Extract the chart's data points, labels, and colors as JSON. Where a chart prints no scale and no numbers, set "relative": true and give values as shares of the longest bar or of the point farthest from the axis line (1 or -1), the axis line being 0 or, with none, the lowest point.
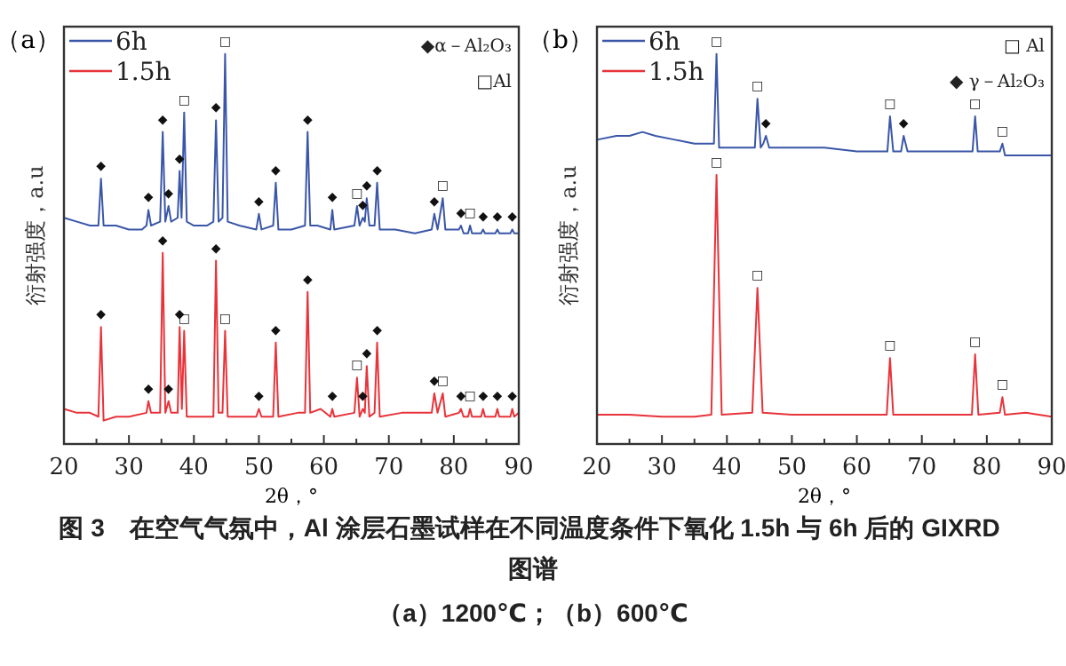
{
  "chart_data": [
    {
      "type": "line",
      "title": "（a）",
      "xlabel": "2θ，°",
      "ylabel": "衍射强度，a.u",
      "relative": true,
      "legend": "top left",
      "xlim": [
        20,
        90
      ],
      "xticks": [
        20,
        {
          "value": 25,
          "label": null
        },
        30,
        {
          "value": 35,
          "label": null
        },
        40,
        {
          "value": 45,
          "label": null
        },
        50,
        {
          "value": 55,
          "label": null
        },
        60,
        {
          "value": 65,
          "label": null
        },
        70,
        {
          "value": 75,
          "label": null
        },
        80,
        {
          "value": 85,
          "label": null
        },
        90
      ],
      "series": [
        {
          "name": "6h",
          "color": "#3a56a8",
          "x": [
            20,
            22,
            24,
            25.3,
            25.7,
            26.1,
            28,
            30,
            32,
            32.7,
            33,
            33.4,
            34.8,
            35.2,
            35.6,
            36.1,
            36.5,
            37.5,
            37.8,
            38.1,
            38.5,
            38.9,
            40,
            42,
            43,
            43.4,
            43.8,
            44.4,
            44.8,
            45.2,
            47,
            49.6,
            50,
            50.4,
            52.2,
            52.6,
            53,
            55,
            57.1,
            57.5,
            57.9,
            59,
            61,
            61.3,
            61.6,
            64.7,
            65.1,
            65.5,
            66,
            66.3,
            66.6,
            67,
            67.8,
            68.2,
            68.6,
            71,
            74,
            76.6,
            77,
            77.5,
            78.3,
            78.7,
            80.8,
            81.1,
            81.5,
            82.2,
            82.5,
            82.8,
            84.2,
            84.5,
            84.8,
            86.4,
            86.7,
            87,
            88.7,
            89,
            89.3,
            90
          ],
          "values": [
            0.58,
            0.57,
            0.56,
            0.56,
            0.68,
            0.56,
            0.56,
            0.55,
            0.55,
            0.56,
            0.6,
            0.56,
            0.57,
            0.8,
            0.57,
            0.61,
            0.57,
            0.58,
            0.7,
            0.58,
            0.85,
            0.57,
            0.56,
            0.56,
            0.57,
            0.83,
            0.57,
            0.58,
            1.0,
            0.57,
            0.56,
            0.55,
            0.59,
            0.55,
            0.56,
            0.67,
            0.55,
            0.55,
            0.56,
            0.8,
            0.56,
            0.56,
            0.55,
            0.6,
            0.55,
            0.56,
            0.61,
            0.56,
            0.58,
            0.57,
            0.63,
            0.56,
            0.56,
            0.67,
            0.55,
            0.55,
            0.54,
            0.55,
            0.59,
            0.55,
            0.63,
            0.55,
            0.55,
            0.56,
            0.54,
            0.54,
            0.56,
            0.54,
            0.54,
            0.55,
            0.54,
            0.54,
            0.55,
            0.54,
            0.54,
            0.55,
            0.54,
            0.54
          ]
        },
        {
          "name": "1.5h",
          "color": "#e8333a",
          "x": [
            20,
            22,
            24,
            25.3,
            25.7,
            26.1,
            28,
            30,
            32.7,
            33,
            33.4,
            34.8,
            35.2,
            35.6,
            36.1,
            36.5,
            37.5,
            37.8,
            38.15,
            38.5,
            38.9,
            40,
            43,
            43.4,
            43.8,
            44.4,
            44.8,
            45.2,
            47,
            49.6,
            50,
            50.4,
            52.2,
            52.6,
            53,
            56,
            57.1,
            57.5,
            57.9,
            59.5,
            61,
            61.3,
            61.6,
            64.7,
            65.1,
            65.5,
            66,
            66.3,
            66.6,
            67,
            67.8,
            68.2,
            68.6,
            72,
            76.6,
            77,
            77.5,
            78.3,
            78.7,
            80.8,
            81.1,
            81.5,
            82.2,
            82.5,
            82.8,
            84.2,
            84.5,
            84.8,
            86.4,
            86.7,
            87,
            88.7,
            89,
            89.3,
            90
          ],
          "values": [
            0.09,
            0.08,
            0.08,
            0.07,
            0.3,
            0.06,
            0.07,
            0.07,
            0.08,
            0.11,
            0.08,
            0.08,
            0.49,
            0.08,
            0.11,
            0.08,
            0.08,
            0.3,
            0.09,
            0.29,
            0.07,
            0.07,
            0.07,
            0.47,
            0.08,
            0.08,
            0.29,
            0.07,
            0.07,
            0.07,
            0.09,
            0.07,
            0.07,
            0.26,
            0.07,
            0.08,
            0.08,
            0.39,
            0.08,
            0.09,
            0.07,
            0.09,
            0.07,
            0.08,
            0.17,
            0.07,
            0.09,
            0.08,
            0.2,
            0.07,
            0.08,
            0.26,
            0.07,
            0.08,
            0.08,
            0.13,
            0.08,
            0.13,
            0.07,
            0.08,
            0.09,
            0.07,
            0.07,
            0.09,
            0.07,
            0.07,
            0.09,
            0.07,
            0.07,
            0.09,
            0.07,
            0.07,
            0.09,
            0.07,
            0.08
          ]
        }
      ],
      "annotations": [
        "◆α－Al₂O₃",
        "□Al",
        {
          "text": "◆",
          "x": 25.7,
          "y": 0.68
        },
        {
          "text": "◆",
          "x": 33,
          "y": 0.6
        },
        {
          "text": "◆",
          "x": 35.2,
          "y": 0.8
        },
        {
          "text": "◆",
          "x": 36.1,
          "y": 0.61
        },
        {
          "text": "◆",
          "x": 37.8,
          "y": 0.7
        },
        {
          "text": "□",
          "x": 38.5,
          "y": 0.85
        },
        {
          "text": "◆",
          "x": 43.4,
          "y": 0.83
        },
        {
          "text": "□",
          "x": 44.8,
          "y": 1.0
        },
        {
          "text": "◆",
          "x": 50,
          "y": 0.59
        },
        {
          "text": "◆",
          "x": 52.6,
          "y": 0.67
        },
        {
          "text": "◆",
          "x": 57.5,
          "y": 0.8
        },
        {
          "text": "◆",
          "x": 61.3,
          "y": 0.6
        },
        {
          "text": "□",
          "x": 65.1,
          "y": 0.61
        },
        {
          "text": "◆",
          "x": 66,
          "y": 0.58
        },
        {
          "text": "◆",
          "x": 66.6,
          "y": 0.63
        },
        {
          "text": "◆",
          "x": 68.2,
          "y": 0.67
        },
        {
          "text": "◆",
          "x": 77,
          "y": 0.59
        },
        {
          "text": "□",
          "x": 78.3,
          "y": 0.63
        },
        {
          "text": "◆",
          "x": 81.1,
          "y": 0.56
        },
        {
          "text": "□",
          "x": 82.5,
          "y": 0.56
        },
        {
          "text": "◆",
          "x": 84.5,
          "y": 0.55
        },
        {
          "text": "◆",
          "x": 86.7,
          "y": 0.55
        },
        {
          "text": "◆",
          "x": 89,
          "y": 0.55
        },
        {
          "text": "◆",
          "x": 25.7,
          "y": 0.3
        },
        {
          "text": "◆",
          "x": 33,
          "y": 0.11
        },
        {
          "text": "◆",
          "x": 35.2,
          "y": 0.49
        },
        {
          "text": "◆",
          "x": 36.1,
          "y": 0.11
        },
        {
          "text": "◆",
          "x": 37.8,
          "y": 0.3
        },
        {
          "text": "□",
          "x": 38.5,
          "y": 0.29
        },
        {
          "text": "◆",
          "x": 43.4,
          "y": 0.47
        },
        {
          "text": "□",
          "x": 44.8,
          "y": 0.29
        },
        {
          "text": "◆",
          "x": 50,
          "y": 0.09
        },
        {
          "text": "◆",
          "x": 52.6,
          "y": 0.26
        },
        {
          "text": "◆",
          "x": 57.5,
          "y": 0.39
        },
        {
          "text": "◆",
          "x": 61.3,
          "y": 0.09
        },
        {
          "text": "□",
          "x": 65.1,
          "y": 0.17
        },
        {
          "text": "◆",
          "x": 66,
          "y": 0.09
        },
        {
          "text": "◆",
          "x": 66.6,
          "y": 0.2
        },
        {
          "text": "◆",
          "x": 68.2,
          "y": 0.26
        },
        {
          "text": "◆",
          "x": 77,
          "y": 0.13
        },
        {
          "text": "□",
          "x": 78.3,
          "y": 0.13
        },
        {
          "text": "◆",
          "x": 81.1,
          "y": 0.09
        },
        {
          "text": "□",
          "x": 82.5,
          "y": 0.09
        },
        {
          "text": "◆",
          "x": 84.5,
          "y": 0.09
        },
        {
          "text": "◆",
          "x": 86.7,
          "y": 0.09
        },
        {
          "text": "◆",
          "x": 89,
          "y": 0.09
        }
      ]
    },
    {
      "type": "line",
      "title": "（b）",
      "xlabel": "2θ，°",
      "ylabel": "衍射强度，a.u",
      "relative": true,
      "legend": "top left",
      "xlim": [
        20,
        90
      ],
      "xticks": [
        20,
        {
          "value": 25,
          "label": null
        },
        30,
        {
          "value": 35,
          "label": null
        },
        40,
        {
          "value": 45,
          "label": null
        },
        50,
        {
          "value": 55,
          "label": null
        },
        60,
        {
          "value": 65,
          "label": null
        },
        70,
        {
          "value": 75,
          "label": null
        },
        80,
        {
          "value": 85,
          "label": null
        },
        90
      ],
      "series": [
        {
          "name": "6h",
          "color": "#3a56a8",
          "x": [
            20,
            23,
            25,
            27,
            29,
            32,
            35,
            38,
            38.4,
            38.8,
            44.3,
            44.7,
            45.2,
            45.6,
            46,
            46.5,
            50,
            55,
            60,
            64.7,
            65.1,
            65.6,
            66.8,
            67.2,
            67.8,
            72,
            77.8,
            78.2,
            78.6,
            82,
            82.4,
            82.8,
            86,
            90
          ],
          "values": [
            0.78,
            0.79,
            0.79,
            0.8,
            0.79,
            0.78,
            0.77,
            0.77,
            1.0,
            0.76,
            0.76,
            0.885,
            0.76,
            0.77,
            0.79,
            0.76,
            0.76,
            0.76,
            0.75,
            0.75,
            0.84,
            0.75,
            0.75,
            0.79,
            0.75,
            0.75,
            0.75,
            0.84,
            0.75,
            0.75,
            0.77,
            0.74,
            0.74,
            0.74
          ]
        },
        {
          "name": "1.5h",
          "color": "#e8333a",
          "x": [
            20,
            25,
            30,
            35,
            37.6,
            38.4,
            39.2,
            43.9,
            44.7,
            45.5,
            50,
            55,
            60,
            64.6,
            65.1,
            65.6,
            77.7,
            78.2,
            78.7,
            82,
            82.4,
            82.8,
            86,
            90
          ],
          "values": [
            0.075,
            0.075,
            0.07,
            0.07,
            0.075,
            0.69,
            0.075,
            0.08,
            0.4,
            0.08,
            0.075,
            0.075,
            0.075,
            0.075,
            0.22,
            0.075,
            0.075,
            0.23,
            0.075,
            0.08,
            0.12,
            0.075,
            0.08,
            0.07
          ]
        }
      ],
      "annotations": [
        "□ Al",
        "◆ γ－Al₂O₃",
        "图 3　在空气气氛中，Al 涂层石墨试样在不同温度条件下氧化 1.5h 与 6h 后的 GIXRD 图谱",
        "（a）1200℃；（b）600℃",
        {
          "text": "□",
          "x": 38.4,
          "y": 1.0
        },
        {
          "text": "□",
          "x": 44.7,
          "y": 0.885
        },
        {
          "text": "◆",
          "x": 46,
          "y": 0.79
        },
        {
          "text": "□",
          "x": 65.1,
          "y": 0.84
        },
        {
          "text": "◆",
          "x": 67.2,
          "y": 0.79
        },
        {
          "text": "□",
          "x": 78.2,
          "y": 0.84
        },
        {
          "text": "□",
          "x": 82.4,
          "y": 0.77
        },
        {
          "text": "□",
          "x": 38.4,
          "y": 0.69
        },
        {
          "text": "□",
          "x": 44.7,
          "y": 0.4
        },
        {
          "text": "□",
          "x": 65.1,
          "y": 0.22
        },
        {
          "text": "□",
          "x": 78.2,
          "y": 0.23
        },
        {
          "text": "□",
          "x": 82.4,
          "y": 0.12
        }
      ]
    }
  ]
}
